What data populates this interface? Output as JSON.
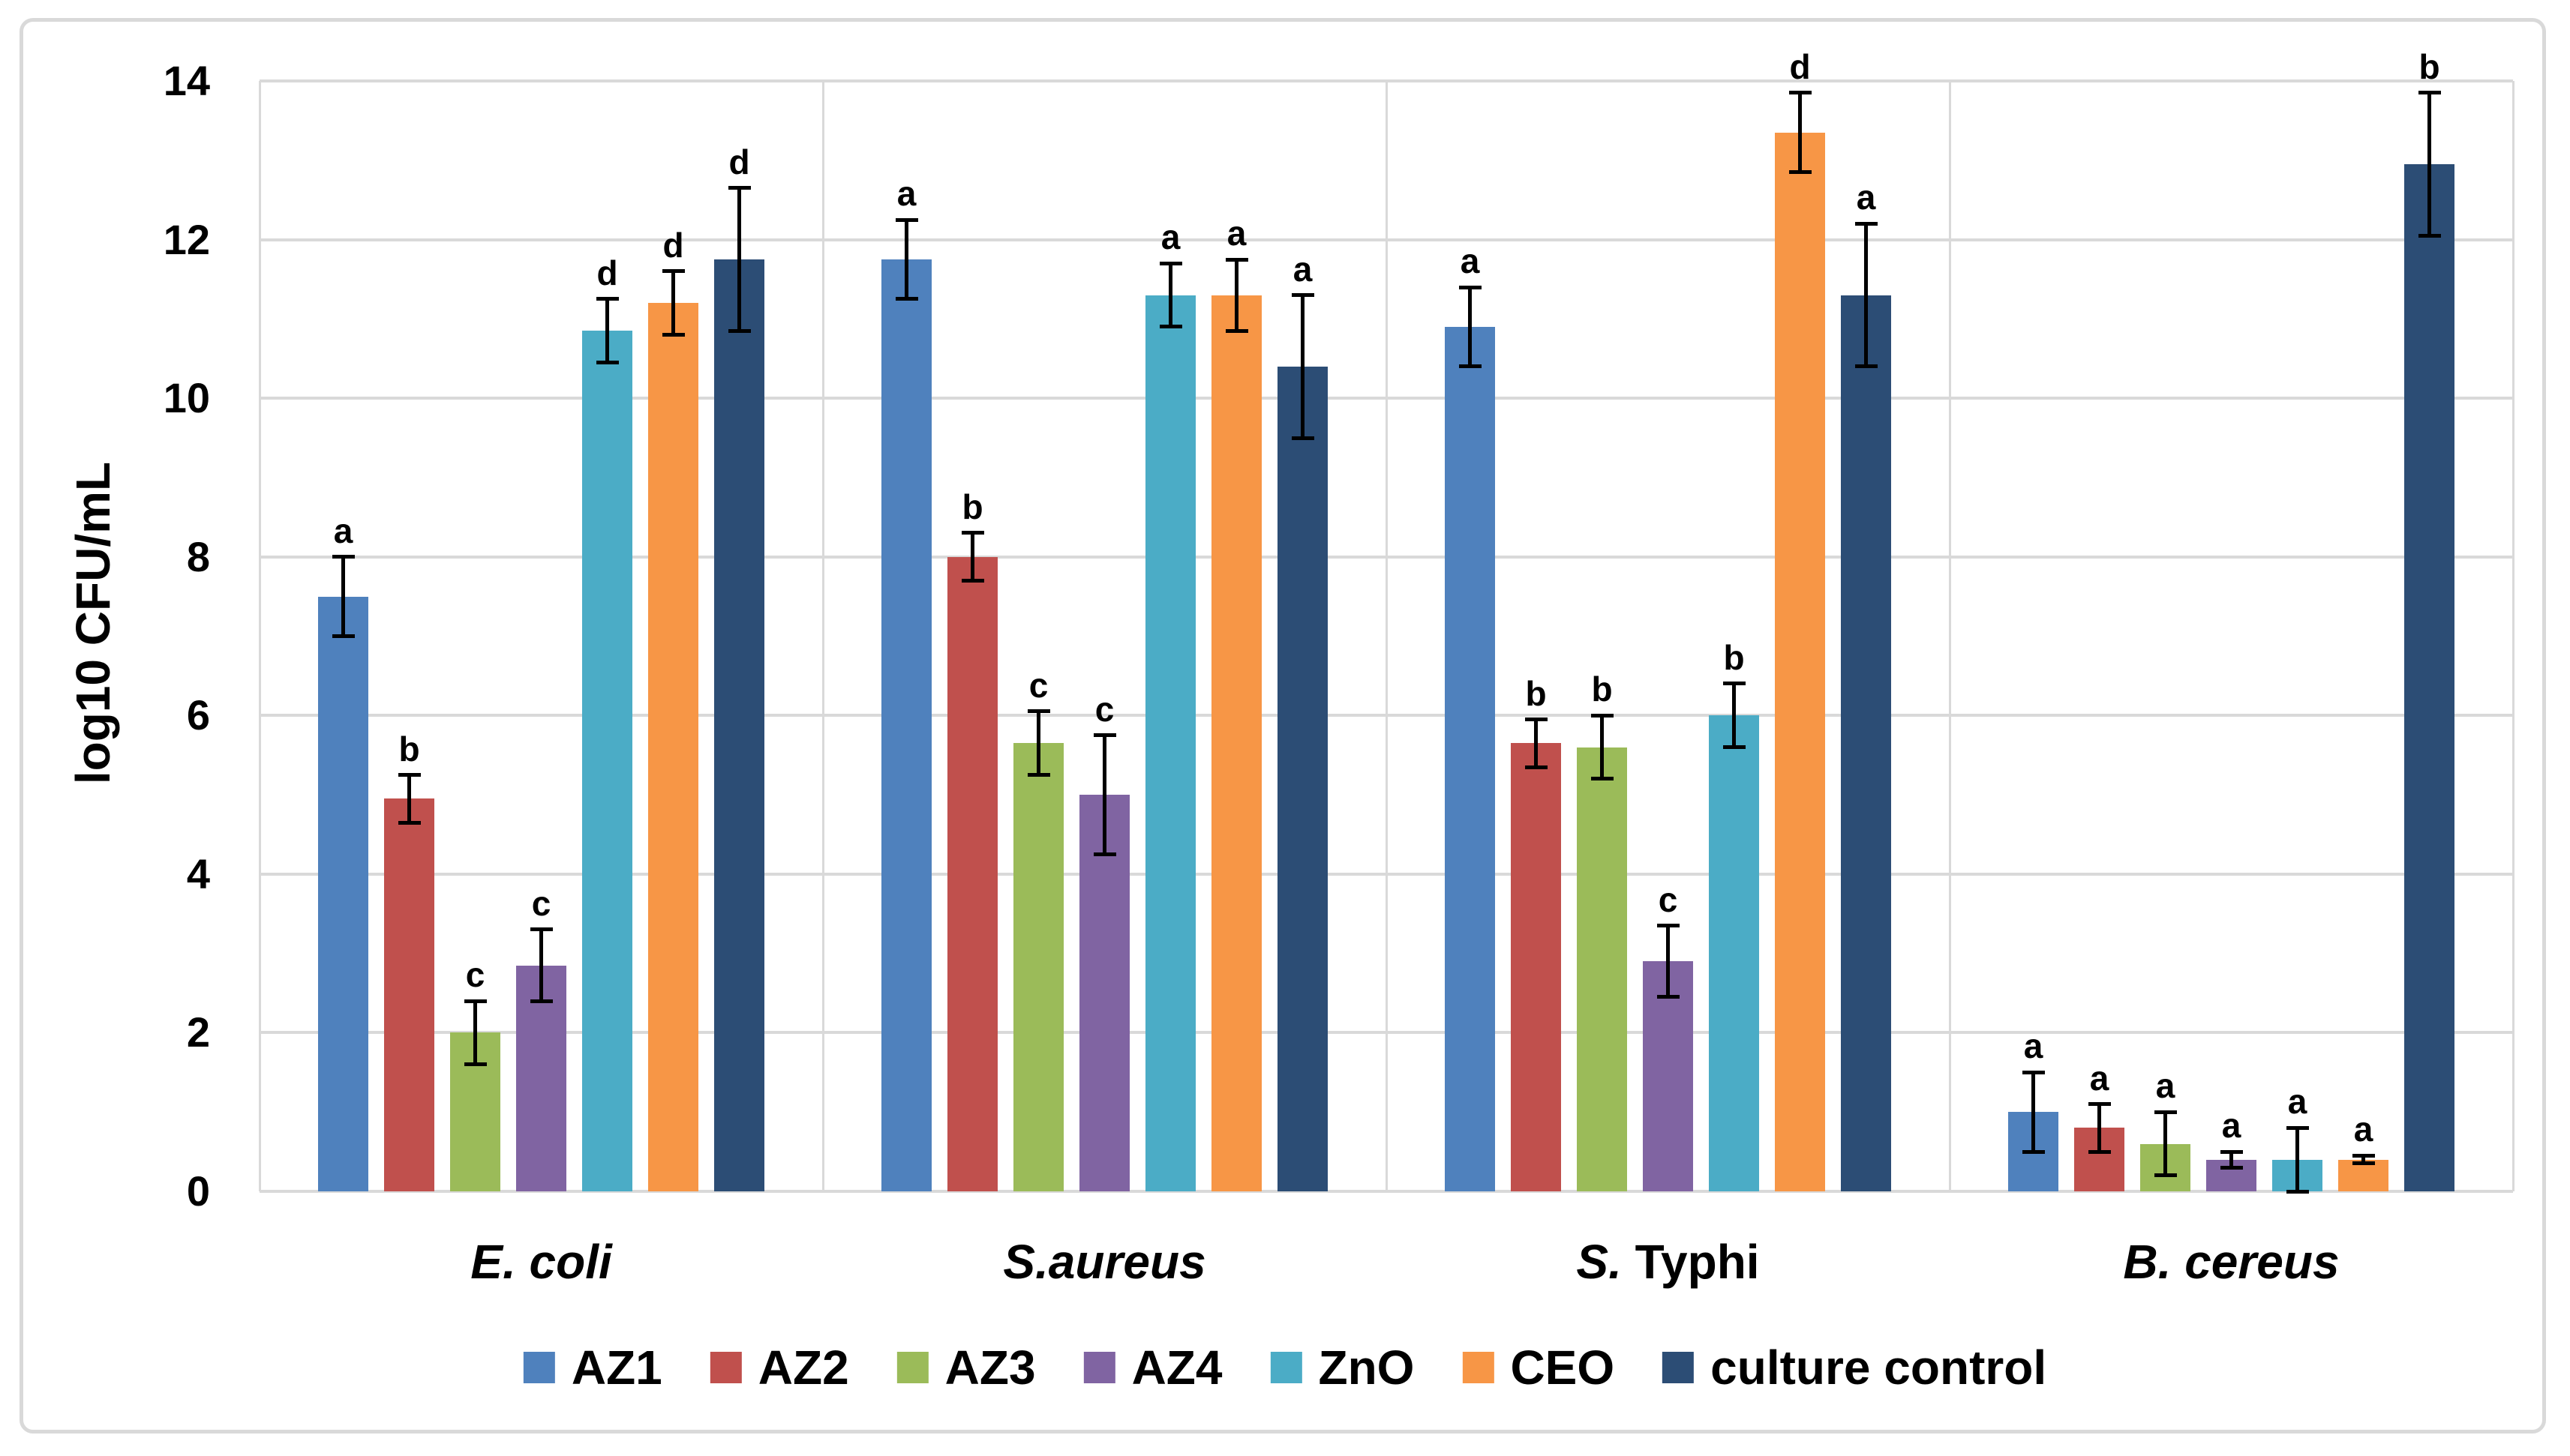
{
  "figure": {
    "kind": "grouped bar chart with error bars",
    "background_color": "#ffffff",
    "border_color": "#d9d9d9"
  },
  "chart_data": {
    "type": "bar",
    "title": "",
    "xlabel": "",
    "ylabel": "log10 CFU/mL",
    "ylim": [
      0,
      14
    ],
    "yticks": [
      0,
      2,
      4,
      6,
      8,
      10,
      12,
      14
    ],
    "grid": true,
    "gridline_color": "#d9d9d9",
    "error_bar_color": "#000000",
    "legend_position": "bottom",
    "categories": [
      {
        "label": "E. coli",
        "italic_part": "E. coli",
        "regular_part": ""
      },
      {
        "label": "S.aureus",
        "italic_part": "S.aureus",
        "regular_part": ""
      },
      {
        "label": "S. Typhi",
        "italic_part": "S.",
        "regular_part": " Typhi"
      },
      {
        "label": "B. cereus",
        "italic_part": "B. cereus",
        "regular_part": ""
      }
    ],
    "series": [
      {
        "name": "AZ1",
        "color": "#4F81BD",
        "values": [
          7.5,
          11.75,
          10.9,
          1.0
        ],
        "errors": [
          0.5,
          0.5,
          0.5,
          0.5
        ],
        "letters": [
          "a",
          "a",
          "a",
          "a"
        ]
      },
      {
        "name": "AZ2",
        "color": "#C0504D",
        "values": [
          4.95,
          8.0,
          5.65,
          0.8
        ],
        "errors": [
          0.3,
          0.3,
          0.3,
          0.3
        ],
        "letters": [
          "b",
          "b",
          "b",
          "a"
        ]
      },
      {
        "name": "AZ3",
        "color": "#9BBB59",
        "values": [
          2.0,
          5.65,
          5.6,
          0.6
        ],
        "errors": [
          0.4,
          0.4,
          0.4,
          0.4
        ],
        "letters": [
          "c",
          "c",
          "b",
          "a"
        ]
      },
      {
        "name": "AZ4",
        "color": "#8064A2",
        "values": [
          2.85,
          5.0,
          2.9,
          0.4
        ],
        "errors": [
          0.45,
          0.75,
          0.45,
          0.1
        ],
        "letters": [
          "c",
          "c",
          "c",
          "a"
        ]
      },
      {
        "name": "ZnO",
        "color": "#4BACC6",
        "values": [
          10.85,
          11.3,
          6.0,
          0.4
        ],
        "errors": [
          0.4,
          0.4,
          0.4,
          0.4
        ],
        "letters": [
          "d",
          "a",
          "b",
          "a"
        ]
      },
      {
        "name": "CEO",
        "color": "#F79646",
        "values": [
          11.2,
          11.3,
          13.35,
          0.4
        ],
        "errors": [
          0.4,
          0.45,
          0.5,
          0.05
        ],
        "letters": [
          "d",
          "a",
          "d",
          "a"
        ]
      },
      {
        "name": "culture control",
        "color": "#2C4D75",
        "values": [
          11.75,
          10.4,
          11.3,
          12.95
        ],
        "errors": [
          0.9,
          0.9,
          0.9,
          0.9
        ],
        "letters": [
          "d",
          "a",
          "a",
          "b"
        ]
      }
    ]
  }
}
